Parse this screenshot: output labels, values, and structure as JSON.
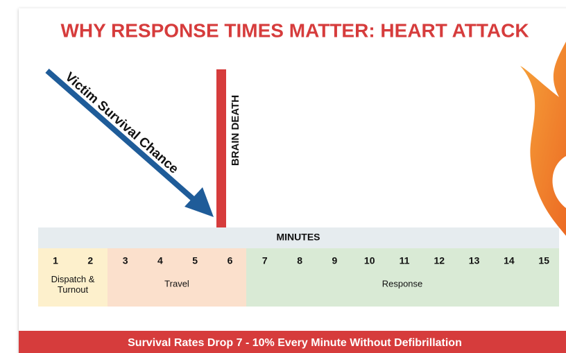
{
  "title": "WHY RESPONSE TIMES MATTER: HEART ATTACK",
  "arrow_label": "Victim Survival Chance",
  "marker_label": "BRAIN DEATH",
  "timeline": {
    "header": "MINUTES",
    "minutes": [
      "1",
      "2",
      "3",
      "4",
      "5",
      "6",
      "7",
      "8",
      "9",
      "10",
      "11",
      "12",
      "13",
      "14",
      "15"
    ],
    "phases": [
      "Dispatch &\nTurnout",
      "Travel",
      "Response"
    ]
  },
  "footer": "Survival Rates Drop 7 - 10% Every Minute Without Defibrillation"
}
